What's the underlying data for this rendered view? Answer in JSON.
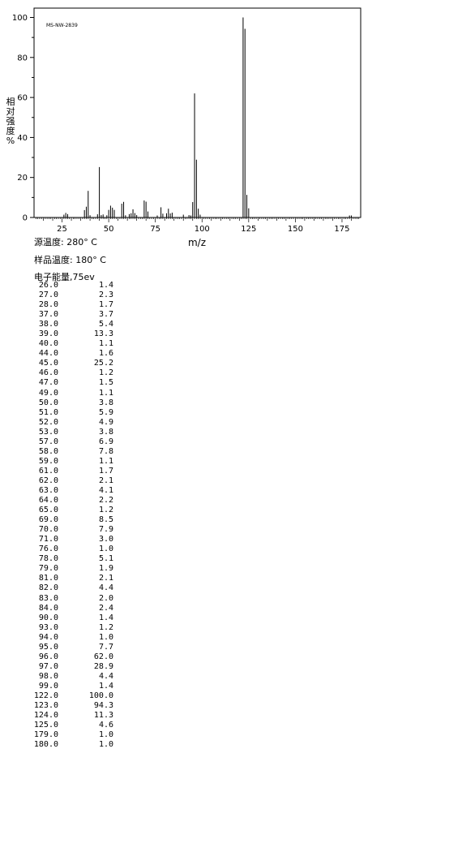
{
  "chart_data": {
    "type": "bar",
    "spectrum_id": "MS-NW-2839",
    "xlabel": "m/z",
    "ylabel": "相对强度%",
    "xlim": [
      10,
      185
    ],
    "ylim": [
      0,
      100
    ],
    "xticks": [
      25,
      50,
      75,
      100,
      125,
      150,
      175
    ],
    "yticks": [
      0,
      20,
      40,
      60,
      80,
      100
    ],
    "grid": false,
    "points": [
      {
        "mz": "26.0",
        "intensity": "1.4"
      },
      {
        "mz": "27.0",
        "intensity": "2.3"
      },
      {
        "mz": "28.0",
        "intensity": "1.7"
      },
      {
        "mz": "37.0",
        "intensity": "3.7"
      },
      {
        "mz": "38.0",
        "intensity": "5.4"
      },
      {
        "mz": "39.0",
        "intensity": "13.3"
      },
      {
        "mz": "40.0",
        "intensity": "1.1"
      },
      {
        "mz": "44.0",
        "intensity": "1.6"
      },
      {
        "mz": "45.0",
        "intensity": "25.2"
      },
      {
        "mz": "46.0",
        "intensity": "1.2"
      },
      {
        "mz": "47.0",
        "intensity": "1.5"
      },
      {
        "mz": "49.0",
        "intensity": "1.1"
      },
      {
        "mz": "50.0",
        "intensity": "3.8"
      },
      {
        "mz": "51.0",
        "intensity": "5.9"
      },
      {
        "mz": "52.0",
        "intensity": "4.9"
      },
      {
        "mz": "53.0",
        "intensity": "3.8"
      },
      {
        "mz": "57.0",
        "intensity": "6.9"
      },
      {
        "mz": "58.0",
        "intensity": "7.8"
      },
      {
        "mz": "59.0",
        "intensity": "1.1"
      },
      {
        "mz": "61.0",
        "intensity": "1.7"
      },
      {
        "mz": "62.0",
        "intensity": "2.1"
      },
      {
        "mz": "63.0",
        "intensity": "4.1"
      },
      {
        "mz": "64.0",
        "intensity": "2.2"
      },
      {
        "mz": "65.0",
        "intensity": "1.2"
      },
      {
        "mz": "69.0",
        "intensity": "8.5"
      },
      {
        "mz": "70.0",
        "intensity": "7.9"
      },
      {
        "mz": "71.0",
        "intensity": "3.0"
      },
      {
        "mz": "76.0",
        "intensity": "1.0"
      },
      {
        "mz": "78.0",
        "intensity": "5.1"
      },
      {
        "mz": "79.0",
        "intensity": "1.9"
      },
      {
        "mz": "81.0",
        "intensity": "2.1"
      },
      {
        "mz": "82.0",
        "intensity": "4.4"
      },
      {
        "mz": "83.0",
        "intensity": "2.0"
      },
      {
        "mz": "84.0",
        "intensity": "2.4"
      },
      {
        "mz": "90.0",
        "intensity": "1.4"
      },
      {
        "mz": "93.0",
        "intensity": "1.2"
      },
      {
        "mz": "94.0",
        "intensity": "1.0"
      },
      {
        "mz": "95.0",
        "intensity": "7.7"
      },
      {
        "mz": "96.0",
        "intensity": "62.0"
      },
      {
        "mz": "97.0",
        "intensity": "28.9"
      },
      {
        "mz": "98.0",
        "intensity": "4.4"
      },
      {
        "mz": "99.0",
        "intensity": "1.4"
      },
      {
        "mz": "122.0",
        "intensity": "100.0"
      },
      {
        "mz": "123.0",
        "intensity": "94.3"
      },
      {
        "mz": "124.0",
        "intensity": "11.3"
      },
      {
        "mz": "125.0",
        "intensity": "4.6"
      },
      {
        "mz": "179.0",
        "intensity": "1.0"
      },
      {
        "mz": "180.0",
        "intensity": "1.0"
      }
    ]
  },
  "conditions": {
    "source_temp": "源温度: 280° C",
    "sample_temp": "样品温度: 180° C",
    "electron_energy": "电子能量,75ev"
  }
}
